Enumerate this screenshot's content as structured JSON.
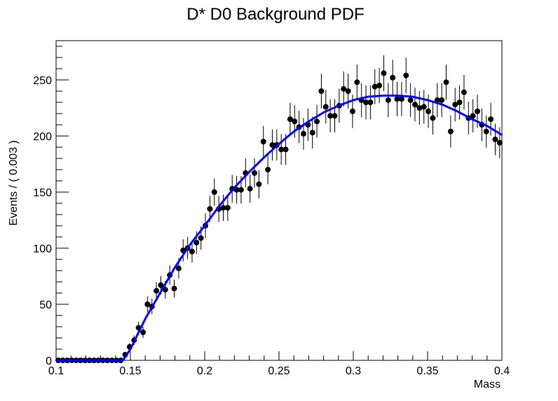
{
  "chart_data": {
    "type": "scatter",
    "title": "D* D0 Background PDF",
    "x_label": "Mass",
    "y_label": "Events / ( 0.003 )",
    "xlim": [
      0.1,
      0.4
    ],
    "xticks": [
      0.1,
      0.15,
      0.2,
      0.25,
      0.3,
      0.35,
      0.4
    ],
    "ylim": [
      0,
      285
    ],
    "yticks": [
      0,
      50,
      100,
      150,
      200,
      250
    ],
    "series": [
      {
        "kind": "points",
        "color": "#000000",
        "x": [
          0.1015,
          0.1045,
          0.1075,
          0.1105,
          0.1135,
          0.1165,
          0.1195,
          0.1225,
          0.1255,
          0.1285,
          0.1315,
          0.1345,
          0.1375,
          0.1405,
          0.1435,
          0.1465,
          0.1495,
          0.1525,
          0.1555,
          0.1585,
          0.1615,
          0.1645,
          0.1675,
          0.1705,
          0.1735,
          0.1765,
          0.1795,
          0.1825,
          0.1855,
          0.1885,
          0.1915,
          0.1945,
          0.1975,
          0.2005,
          0.2035,
          0.2065,
          0.2095,
          0.2125,
          0.2155,
          0.2185,
          0.2215,
          0.2245,
          0.2275,
          0.2305,
          0.2335,
          0.2365,
          0.2395,
          0.2425,
          0.2455,
          0.2485,
          0.2515,
          0.2545,
          0.2575,
          0.2605,
          0.2635,
          0.2665,
          0.2695,
          0.2725,
          0.2755,
          0.2785,
          0.2815,
          0.2845,
          0.2875,
          0.2905,
          0.2935,
          0.2965,
          0.2995,
          0.3025,
          0.3055,
          0.3085,
          0.3115,
          0.3145,
          0.3175,
          0.3205,
          0.3235,
          0.3265,
          0.3295,
          0.3325,
          0.3355,
          0.3385,
          0.3415,
          0.3445,
          0.3475,
          0.3505,
          0.3535,
          0.3565,
          0.3595,
          0.3625,
          0.3655,
          0.3685,
          0.3715,
          0.3745,
          0.3775,
          0.3805,
          0.3835,
          0.3865,
          0.3895,
          0.3925,
          0.3955,
          0.3985
        ],
        "values": [
          0,
          0,
          0,
          0,
          0,
          0,
          0,
          0,
          0,
          0,
          0,
          0,
          0,
          0,
          0,
          5,
          12,
          18,
          29,
          25,
          50,
          48,
          62,
          67,
          63,
          76,
          64,
          82,
          98,
          100,
          97,
          105,
          109,
          120,
          135,
          150,
          135,
          136,
          136,
          153,
          152,
          152,
          167,
          153,
          167,
          157,
          195,
          170,
          192,
          192,
          188,
          188,
          215,
          213,
          208,
          202,
          210,
          203,
          213,
          240,
          226,
          218,
          218,
          227,
          242,
          240,
          222,
          248,
          232,
          230,
          230,
          244,
          245,
          256,
          232,
          252,
          233,
          233,
          254,
          232,
          228,
          225,
          226,
          222,
          216,
          232,
          232,
          248,
          204,
          228,
          230,
          239,
          216,
          218,
          222,
          210,
          204,
          215,
          197,
          194
        ],
        "errors": [
          0,
          0,
          0,
          0,
          0,
          0,
          0,
          0,
          0,
          0,
          0,
          0,
          0,
          0,
          0,
          2.2,
          3.5,
          4.2,
          5.4,
          5,
          7.1,
          6.9,
          7.9,
          8.2,
          7.9,
          8.7,
          8,
          9.1,
          9.9,
          10,
          9.8,
          10.2,
          10.4,
          11,
          11.6,
          12.2,
          11.6,
          11.7,
          11.7,
          12.4,
          12.3,
          12.3,
          12.9,
          12.4,
          12.9,
          12.5,
          14,
          13,
          13.9,
          13.9,
          13.7,
          13.7,
          14.7,
          14.6,
          14.4,
          14.2,
          14.5,
          14.2,
          14.6,
          15.5,
          15,
          14.8,
          14.8,
          15.1,
          15.6,
          15.5,
          14.9,
          15.7,
          15.2,
          15.2,
          15.2,
          15.6,
          15.7,
          16,
          15.2,
          15.9,
          15.3,
          15.3,
          15.9,
          15.2,
          15.1,
          15,
          15,
          14.9,
          14.7,
          15.2,
          15.2,
          15.7,
          14.3,
          15.1,
          15.2,
          15.5,
          14.7,
          14.8,
          14.9,
          14.5,
          14.3,
          14.7,
          14,
          13.9
        ]
      },
      {
        "kind": "line",
        "color": "#0000ff",
        "x": [
          0.1,
          0.145,
          0.15,
          0.16,
          0.17,
          0.18,
          0.19,
          0.2,
          0.21,
          0.22,
          0.23,
          0.24,
          0.25,
          0.26,
          0.27,
          0.28,
          0.29,
          0.3,
          0.31,
          0.32,
          0.33,
          0.34,
          0.35,
          0.36,
          0.37,
          0.38,
          0.39,
          0.4
        ],
        "values": [
          0,
          0,
          10,
          37,
          60,
          83,
          103,
          120,
          138,
          154,
          168,
          181,
          193,
          204,
          213,
          221,
          227,
          232,
          235,
          236,
          236,
          235,
          232,
          228,
          222,
          215,
          209,
          201
        ]
      }
    ]
  }
}
